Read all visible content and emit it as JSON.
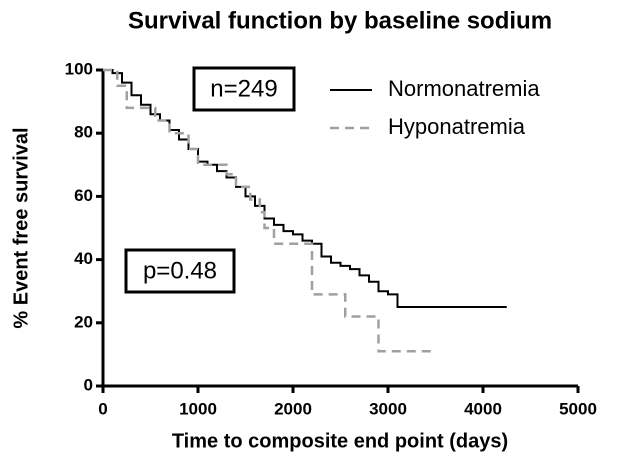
{
  "chart_data": {
    "type": "line",
    "step": true,
    "title": "Survival function by baseline sodium",
    "x_label": "Time to composite end point (days)",
    "y_label": "% Event free survival",
    "annotations": [
      "n=249",
      "p=0.48"
    ],
    "xlim": [
      0,
      5000
    ],
    "xticks": [
      0,
      1000,
      2000,
      3000,
      4000,
      5000
    ],
    "ylim": [
      0,
      100
    ],
    "yticks": [
      0,
      20,
      40,
      60,
      80,
      100
    ],
    "legend": "top-right",
    "series": [
      {
        "name": "Normonatremia",
        "color": "#000000",
        "dashed": false,
        "x": [
          0,
          100,
          200,
          300,
          400,
          500,
          600,
          700,
          800,
          900,
          1000,
          1100,
          1200,
          1300,
          1400,
          1500,
          1600,
          1700,
          1800,
          1900,
          2000,
          2100,
          2200,
          2300,
          2400,
          2500,
          2600,
          2700,
          2800,
          2900,
          3000,
          3100,
          4250
        ],
        "values": [
          100,
          99,
          96,
          92,
          89,
          86,
          84,
          81,
          78,
          75,
          71,
          70,
          68,
          66,
          63,
          60,
          57,
          53,
          51,
          49,
          48,
          46,
          45,
          41,
          39,
          38,
          37,
          35,
          33,
          30,
          29,
          25,
          25
        ]
      },
      {
        "name": "Hyponatremia",
        "color": "#a0a0a0",
        "dashed": true,
        "x": [
          0,
          150,
          250,
          550,
          700,
          900,
          1000,
          1300,
          1400,
          1550,
          1650,
          1700,
          1800,
          2200,
          2550,
          2900,
          3450
        ],
        "values": [
          100,
          95,
          88,
          84,
          80,
          75,
          70,
          67,
          63,
          59,
          55,
          50,
          45,
          29,
          22,
          11,
          11
        ]
      }
    ]
  }
}
